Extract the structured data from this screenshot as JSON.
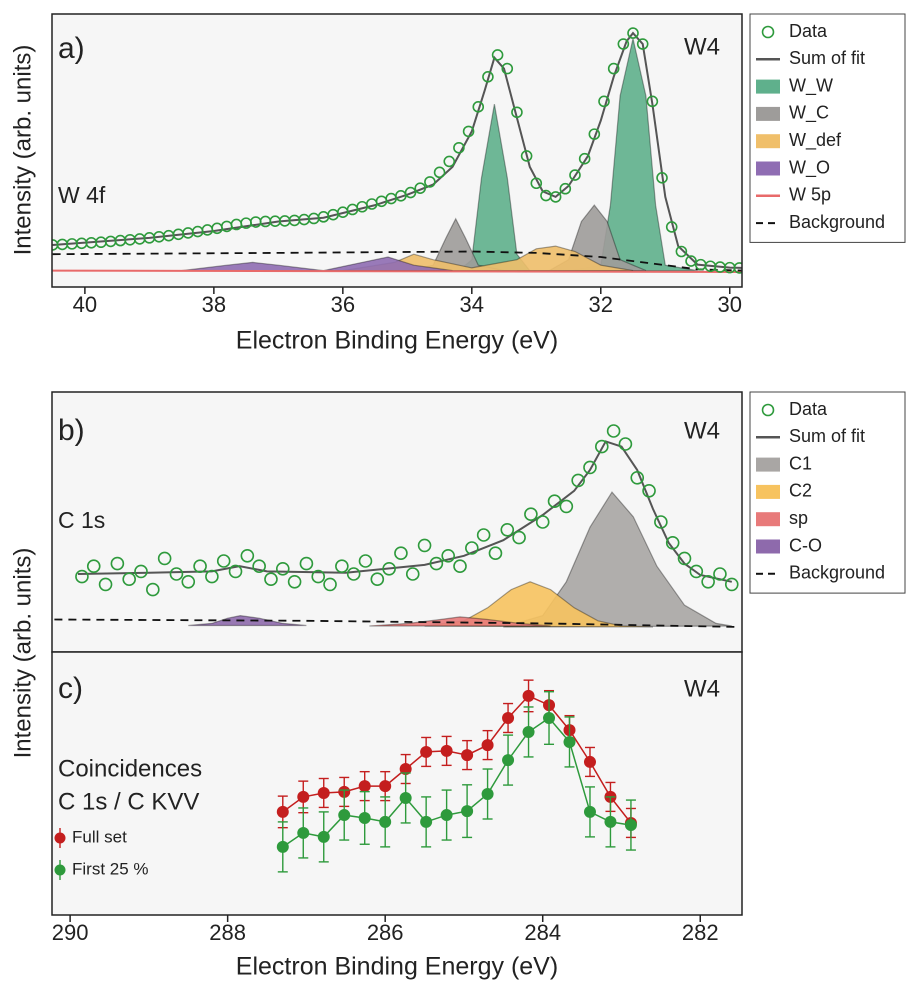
{
  "chart_data": [
    {
      "type": "line",
      "xlabel": "Electron Binding Energy (eV)",
      "ylabel": "Intensity (arb. units)",
      "annotations": [
        "a)",
        "W4",
        "W 4f"
      ],
      "xlim": [
        40.51,
        29.81
      ],
      "xticks": [
        40,
        38,
        36,
        34,
        32,
        30
      ],
      "ylim": [
        0,
        100
      ],
      "legend": "outside-right",
      "series": [
        {
          "name": "Data",
          "color": "#2e9a3c",
          "style": "markers",
          "x": [
            40.5,
            40.35,
            40.2,
            40.05,
            39.9,
            39.75,
            39.6,
            39.45,
            39.3,
            39.15,
            39.0,
            38.85,
            38.7,
            38.55,
            38.4,
            38.25,
            38.1,
            37.95,
            37.8,
            37.65,
            37.5,
            37.35,
            37.2,
            37.05,
            36.9,
            36.75,
            36.6,
            36.45,
            36.3,
            36.15,
            36.0,
            35.85,
            35.7,
            35.55,
            35.4,
            35.25,
            35.1,
            34.95,
            34.8,
            34.65,
            34.5,
            34.35,
            34.2,
            34.05,
            33.9,
            33.75,
            33.6,
            33.45,
            33.3,
            33.15,
            33.0,
            32.85,
            32.7,
            32.55,
            32.4,
            32.25,
            32.1,
            31.95,
            31.8,
            31.65,
            31.5,
            31.35,
            31.2,
            31.05,
            30.9,
            30.75,
            30.6,
            30.45,
            30.3,
            30.15,
            30.0,
            29.85
          ],
          "values": [
            15.4,
            15.6,
            15.8,
            16,
            16.2,
            16.4,
            16.7,
            17,
            17.3,
            17.6,
            18,
            18.4,
            18.8,
            19.3,
            19.8,
            20.3,
            20.9,
            21.5,
            22.2,
            22.9,
            23.4,
            23.8,
            24.0,
            24.1,
            24.2,
            24.4,
            24.7,
            25.1,
            25.7,
            26.5,
            27.4,
            28.4,
            29.4,
            30.4,
            31.4,
            32.4,
            33.4,
            34.6,
            36.2,
            38.5,
            42,
            46,
            51,
            57,
            66,
            77,
            85,
            80,
            64,
            48,
            38,
            33.5,
            33,
            36,
            41,
            47,
            56,
            68,
            80,
            89,
            93,
            89,
            68,
            40,
            22,
            13,
            9.5,
            8.2,
            7.6,
            7.3,
            7.1,
            7.0
          ]
        },
        {
          "name": "Sum of fit",
          "color": "#555555",
          "style": "line",
          "x": [
            40.5,
            39,
            38,
            37,
            36.3,
            35.5,
            35,
            34.6,
            34.3,
            34,
            33.8,
            33.65,
            33.5,
            33.3,
            33.1,
            32.9,
            32.7,
            32.5,
            32.2,
            32,
            31.8,
            31.6,
            31.5,
            31.35,
            31.2,
            31,
            30.8,
            30.5,
            30,
            29.8
          ],
          "values": [
            15.4,
            18,
            20.5,
            24,
            25.4,
            30,
            33.8,
            37.5,
            44,
            57,
            72,
            84,
            80,
            62,
            44,
            35,
            33,
            37,
            48,
            61,
            77,
            90,
            93,
            89,
            67,
            33,
            15,
            8.2,
            7.1,
            7
          ]
        },
        {
          "name": "W_W",
          "color": "#5fb08c",
          "style": "area",
          "x": [
            35,
            34.2,
            34.0,
            33.85,
            33.65,
            33.45,
            33.3,
            33.1,
            32.5,
            32.0,
            31.85,
            31.7,
            31.5,
            31.3,
            31.15,
            31.0,
            30.5
          ],
          "values": [
            6,
            6,
            10,
            40,
            67,
            40,
            12,
            6,
            6,
            8,
            30,
            70,
            91,
            70,
            30,
            8,
            6
          ]
        },
        {
          "name": "W_C",
          "color": "#9e9c9a",
          "style": "area",
          "x": [
            35,
            34.6,
            34.4,
            34.25,
            34.1,
            33.9,
            33.5,
            32.8,
            32.5,
            32.3,
            32.1,
            31.9,
            31.7,
            31.3
          ],
          "values": [
            6,
            8,
            18,
            25,
            18,
            8,
            6,
            6,
            10,
            24,
            30,
            24,
            10,
            6
          ]
        },
        {
          "name": "W_def",
          "color": "#f0bf6a",
          "style": "area",
          "x": [
            36,
            35.2,
            34.9,
            34.6,
            34,
            33.3,
            33,
            32.7,
            32.4,
            32,
            31.5
          ],
          "values": [
            6,
            9,
            12,
            10,
            7,
            10,
            14,
            15,
            13,
            8,
            6
          ]
        },
        {
          "name": "W_O",
          "color": "#8f6db3",
          "style": "area",
          "x": [
            38.5,
            37.8,
            37.4,
            37,
            36.3,
            35.7,
            35.3,
            34.9,
            34.3
          ],
          "values": [
            6,
            8,
            9,
            8,
            6,
            9,
            11,
            8,
            6
          ]
        },
        {
          "name": "W 5p",
          "color": "#e86a6a",
          "style": "line",
          "x": [
            40.5,
            29.8
          ],
          "values": [
            6,
            5.5
          ]
        },
        {
          "name": "Background",
          "color": "#111111",
          "style": "dashed",
          "x": [
            40.5,
            37,
            34,
            33,
            32,
            31,
            30.5,
            29.8
          ],
          "values": [
            12,
            12.5,
            13,
            12.5,
            11,
            8,
            6.5,
            6
          ]
        }
      ]
    },
    {
      "type": "line",
      "ylabel": "Intensity (arb. units)",
      "annotations": [
        "b)",
        "W4",
        "C 1s"
      ],
      "xlim": [
        290.23,
        281.47
      ],
      "ylim": [
        0,
        100
      ],
      "legend": "outside-right",
      "series": [
        {
          "name": "Data",
          "color": "#2e9a3c",
          "style": "markers",
          "x": [
            289.85,
            289.7,
            289.55,
            289.4,
            289.25,
            289.1,
            288.95,
            288.8,
            288.65,
            288.5,
            288.35,
            288.2,
            288.05,
            287.9,
            287.75,
            287.6,
            287.45,
            287.3,
            287.15,
            287.0,
            286.85,
            286.7,
            286.55,
            286.4,
            286.25,
            286.1,
            285.95,
            285.8,
            285.65,
            285.5,
            285.35,
            285.2,
            285.05,
            284.9,
            284.75,
            284.6,
            284.45,
            284.3,
            284.15,
            284.0,
            283.85,
            283.7,
            283.55,
            283.4,
            283.25,
            283.1,
            282.95,
            282.8,
            282.65,
            282.5,
            282.35,
            282.2,
            282.05,
            281.9,
            281.75,
            281.6
          ],
          "values": [
            29,
            33,
            26,
            34,
            28,
            31,
            24,
            36,
            30,
            27,
            33,
            29,
            35,
            31,
            37,
            33,
            28,
            32,
            27,
            34,
            29,
            26,
            33,
            30,
            35,
            28,
            32,
            38,
            30,
            41,
            34,
            37,
            33,
            40,
            45,
            38,
            47,
            44,
            53,
            50,
            58,
            56,
            66,
            71,
            79,
            85,
            80,
            67,
            62,
            50,
            42,
            36,
            31,
            27,
            30,
            26
          ]
        },
        {
          "name": "Sum of fit",
          "color": "#555555",
          "style": "line",
          "x": [
            289.9,
            289,
            288.2,
            287.85,
            287.5,
            286.5,
            285.5,
            285,
            284.5,
            284,
            283.6,
            283.4,
            283.2,
            283.0,
            282.8,
            282.6,
            282.4,
            282.2,
            282,
            281.6
          ],
          "values": [
            30,
            30.5,
            31,
            33,
            31,
            30.5,
            33.5,
            37,
            43,
            52.7,
            62,
            70,
            81,
            79,
            70,
            55,
            42,
            34,
            29.6,
            27
          ]
        },
        {
          "name": "C1",
          "color": "#a9a6a4",
          "style": "area",
          "x": [
            284.5,
            284,
            283.7,
            283.4,
            283.12,
            282.85,
            282.55,
            282.2,
            281.8,
            281.6
          ],
          "values": [
            9.6,
            14,
            27,
            48,
            61.5,
            52,
            33,
            18,
            11,
            10
          ]
        },
        {
          "name": "C2",
          "color": "#f7c35f",
          "style": "area",
          "x": [
            285.5,
            285,
            284.7,
            284.4,
            284.16,
            283.9,
            283.6,
            283.3,
            283.0,
            282.6
          ],
          "values": [
            10,
            12,
            17,
            24,
            27,
            24,
            17,
            12,
            10,
            9.6
          ]
        },
        {
          "name": "sp",
          "color": "#e87a7a",
          "style": "area",
          "x": [
            286.2,
            285.7,
            285.3,
            285.05,
            284.7,
            284.3,
            283.9
          ],
          "values": [
            10,
            11,
            12.5,
            13.5,
            12.5,
            11,
            10
          ]
        },
        {
          "name": "C-O",
          "color": "#8e6aac",
          "style": "area",
          "x": [
            288.5,
            288.2,
            288,
            287.84,
            287.6,
            287.3,
            287.0
          ],
          "values": [
            10.2,
            11,
            13,
            14,
            13,
            11,
            10.2
          ]
        },
        {
          "name": "Background",
          "color": "#111111",
          "style": "dashed",
          "x": [
            290.2,
            287,
            284,
            281.5
          ],
          "values": [
            12.5,
            12,
            11,
            9.6
          ]
        }
      ]
    },
    {
      "type": "errorbar",
      "xlabel": "Electron Binding Energy (eV)",
      "annotations": [
        "c)",
        "W4",
        "Coincidences",
        "C 1s / C KVV"
      ],
      "xlim": [
        290.23,
        281.47
      ],
      "xticks": [
        290,
        288,
        286,
        284,
        282
      ],
      "ylim": [
        0,
        100
      ],
      "legend": "lower-left",
      "series": [
        {
          "name": "Full set",
          "color": "#c41e1e",
          "style": "errorbar",
          "x": [
            287.3,
            287.04,
            286.78,
            286.52,
            286.26,
            286.0,
            285.74,
            285.48,
            285.22,
            284.96,
            284.7,
            284.44,
            284.18,
            283.92,
            283.66,
            283.4,
            283.14,
            282.88
          ],
          "values": [
            39.2,
            44.9,
            46.4,
            46.8,
            49.0,
            49.0,
            55.5,
            62.0,
            62.4,
            60.8,
            64.6,
            74.9,
            83.3,
            79.8,
            70.3,
            58.2,
            44.9,
            35.0
          ],
          "errors": [
            6,
            6,
            5.5,
            5.5,
            5.5,
            5.5,
            5.5,
            5.5,
            5.5,
            5.5,
            5.5,
            5.5,
            6,
            5.5,
            5.5,
            5.5,
            5.5,
            5.5
          ]
        },
        {
          "name": "First 25 %",
          "color": "#2e9a3c",
          "style": "errorbar",
          "x": [
            287.3,
            287.04,
            286.78,
            286.52,
            286.26,
            286.0,
            285.74,
            285.48,
            285.22,
            284.96,
            284.7,
            284.44,
            284.18,
            283.92,
            283.66,
            283.4,
            283.14,
            282.88
          ],
          "values": [
            25.9,
            31.2,
            29.7,
            38.0,
            36.9,
            35.4,
            44.5,
            35.4,
            38.0,
            39.5,
            46.0,
            58.9,
            69.6,
            74.9,
            65.8,
            39.2,
            35.4,
            34.2
          ],
          "errors": [
            9.5,
            9.5,
            9.5,
            9.5,
            10,
            9.5,
            9.5,
            9.5,
            9.5,
            10,
            9.5,
            9.5,
            9.5,
            10,
            9.5,
            9.5,
            9.5,
            9.5
          ]
        }
      ]
    }
  ]
}
